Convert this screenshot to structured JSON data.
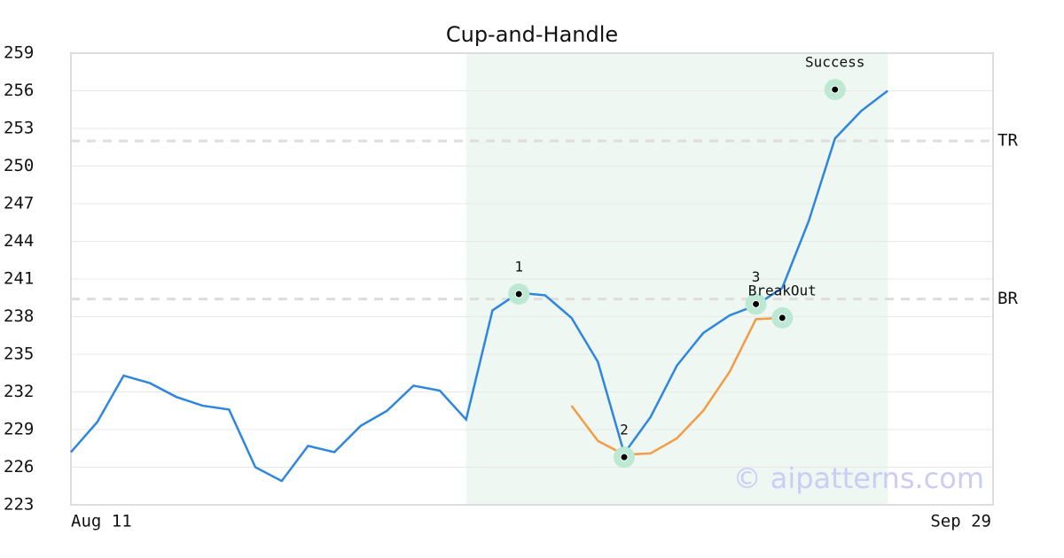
{
  "chart_data": {
    "type": "line",
    "title": "Cup-and-Handle",
    "categories": [
      "Aug 11",
      null,
      null,
      null,
      null,
      null,
      null,
      null,
      null,
      null,
      null,
      null,
      null,
      null,
      null,
      null,
      null,
      null,
      null,
      null,
      null,
      null,
      null,
      null,
      null,
      null,
      null,
      null,
      null,
      null,
      null,
      null,
      null,
      null,
      null,
      "Sep 29"
    ],
    "series": [
      {
        "color": "#2e86de",
        "values": [
          227.2,
          229.6,
          233.3,
          232.7,
          231.6,
          230.9,
          230.6,
          226.0,
          224.9,
          227.7,
          227.2,
          229.3,
          230.5,
          232.5,
          232.1,
          229.8,
          238.5,
          239.9,
          239.7,
          237.9,
          234.4,
          227.1,
          230.0,
          234.1,
          236.7,
          238.1,
          238.9,
          240.3,
          245.6,
          252.2,
          254.4,
          256.0,
          null,
          null,
          null,
          null
        ]
      },
      {
        "color": "#f39c45",
        "values": [
          null,
          null,
          null,
          null,
          null,
          null,
          null,
          null,
          null,
          null,
          null,
          null,
          null,
          null,
          null,
          null,
          null,
          239.8,
          null,
          230.9,
          228.1,
          227.0,
          227.1,
          228.3,
          230.5,
          233.6,
          237.8,
          237.9,
          null,
          null,
          null,
          null,
          null,
          null,
          null,
          null
        ]
      }
    ],
    "points": [
      {
        "index": 17,
        "value": 239.8,
        "label": "1"
      },
      {
        "index": 21,
        "value": 226.8,
        "label": "2"
      },
      {
        "index": 26,
        "value": 239.0,
        "label": "3"
      },
      {
        "index": 27,
        "value": 237.9,
        "label": "BreakOut"
      },
      {
        "index": 29,
        "value": 256.1,
        "label": "Success"
      }
    ],
    "hlines": [
      {
        "value": 252.0,
        "label": "TR"
      },
      {
        "value": 239.4,
        "label": "BR"
      }
    ],
    "shaded_range": [
      15,
      31
    ],
    "ylim": [
      223,
      259
    ],
    "yticks": [
      223,
      226,
      229,
      232,
      235,
      238,
      241,
      244,
      247,
      250,
      253,
      256,
      259
    ],
    "grid": true,
    "watermark": "© aipatterns.com"
  }
}
